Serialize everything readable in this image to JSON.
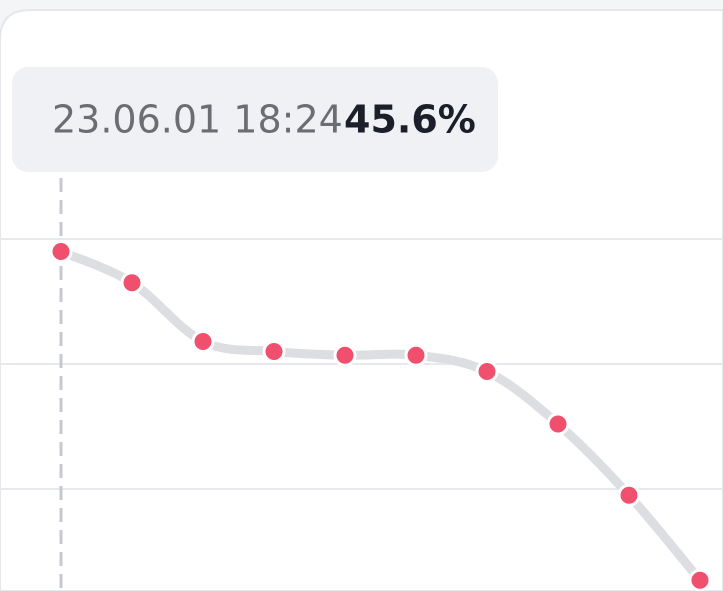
{
  "chart_data": {
    "type": "line",
    "categories": [
      "23.06.01 18:24",
      null,
      null,
      null,
      null,
      null,
      null,
      null,
      null,
      null
    ],
    "values": [
      45.6,
      45.35,
      44.88,
      44.8,
      44.77,
      44.77,
      44.64,
      44.22,
      43.65,
      42.97
    ],
    "value_labels": [
      "45.6%",
      null,
      null,
      null,
      null,
      null,
      null,
      null,
      null,
      null
    ],
    "line_color": "#dcdee2",
    "point_color": "#f0506e",
    "ylim": [
      42.9,
      47.5
    ],
    "yticks": [
      43.7,
      44.7,
      45.7
    ],
    "grid": true
  }
}
